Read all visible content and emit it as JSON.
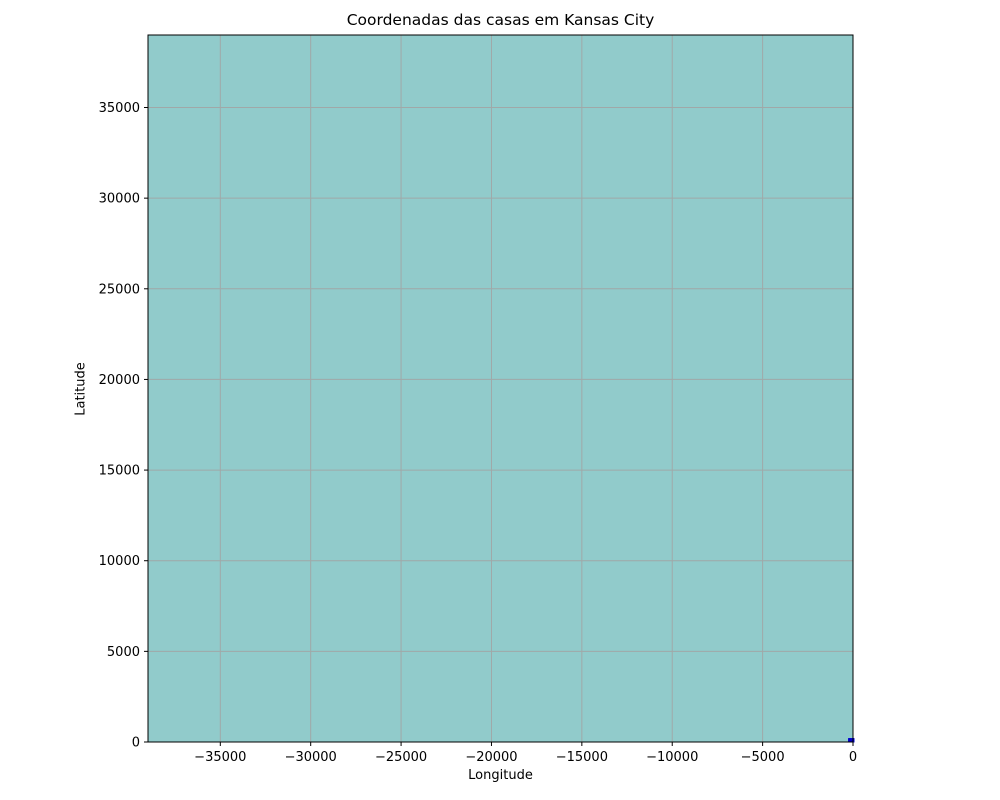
{
  "chart_data": {
    "type": "scatter",
    "title": "Coordenadas das casas em Kansas City",
    "xlabel": "Longitude",
    "ylabel": "Latitude",
    "xlim": [
      -39000,
      0
    ],
    "ylim": [
      0,
      39000
    ],
    "xticks": [
      -35000,
      -30000,
      -25000,
      -20000,
      -15000,
      -10000,
      -5000,
      0
    ],
    "yticks": [
      0,
      5000,
      10000,
      15000,
      20000,
      25000,
      30000,
      35000
    ],
    "xtick_labels": [
      "−35000",
      "−30000",
      "−25000",
      "−20000",
      "−15000",
      "−10000",
      "−5000",
      "0"
    ],
    "ytick_labels": [
      "0",
      "5000",
      "10000",
      "15000",
      "20000",
      "25000",
      "30000",
      "35000"
    ],
    "grid": true,
    "background_color": "#91cbcb",
    "grid_color": "#a0a8a8",
    "marker_color": "#0000cc",
    "series": [
      {
        "x": [
          -94.6,
          -94.5,
          -94.55,
          -94.58,
          -94.52
        ],
        "y": [
          39.1,
          39.05,
          39.08,
          39.12,
          39.02
        ]
      }
    ]
  }
}
